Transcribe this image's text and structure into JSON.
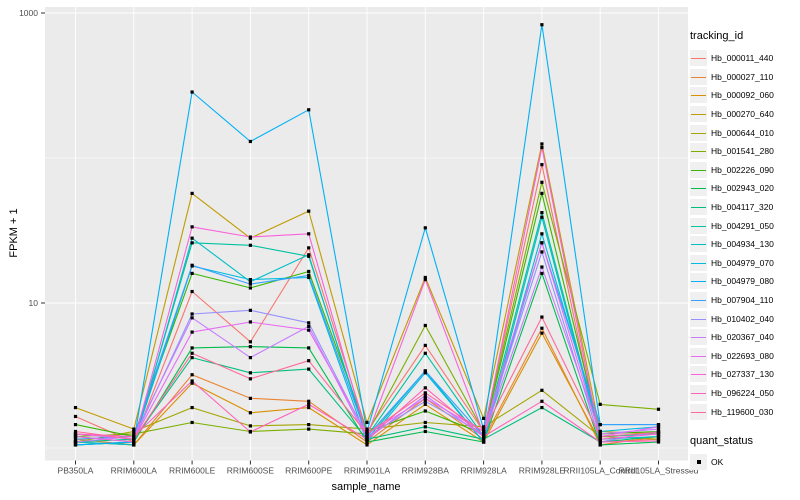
{
  "figure": {
    "y_axis": {
      "label": "FPKM + 1",
      "tick_labels": [
        "1000",
        "10"
      ],
      "tick_values": [
        1000,
        10
      ]
    },
    "x_axis": {
      "label": "sample_name"
    },
    "legend": {
      "tracking_title": "tracking_id",
      "quant_title": "quant_status",
      "quant_value": "OK"
    }
  },
  "colors": {
    "panel_bg": "#EBEBEB",
    "grid_major": "#FFFFFF",
    "grid_minor": "#FFFFFF",
    "axis_text": "#4D4D4D",
    "tick_mark": "#333333",
    "point": "#000000",
    "legend_key_bg": "#F0F0F0"
  },
  "chart_data": {
    "type": "line",
    "title": "",
    "xlabel": "sample_name",
    "ylabel": "FPKM + 1",
    "y_scale": "log10",
    "ylim": [
      1,
      1000
    ],
    "y_major_ticks": [
      10,
      1000
    ],
    "y_minor_gridlines": [
      1,
      100
    ],
    "grid": true,
    "legend_position": "right",
    "point_shape": "filled-black-square",
    "quant_status": "OK",
    "categories": [
      "PB350LA",
      "RRIM600LA",
      "RRIM600LE",
      "RRIM600SE",
      "RRIM600PE",
      "RRIM901LA",
      "RRIM928BA",
      "RRIM928LA",
      "RRIM928LE",
      "RRII105LA_Control",
      "RRII105LA_Stressed"
    ],
    "series": [
      {
        "name": "Hb_000011_440",
        "color": "#F8766D",
        "values": [
          1.65,
          1.1,
          12.0,
          5.4,
          24.0,
          1.3,
          5.1,
          1.3,
          90,
          1.1,
          1.15
        ]
      },
      {
        "name": "Hb_000027_110",
        "color": "#EA8331",
        "values": [
          1.15,
          1.05,
          3.2,
          2.2,
          2.1,
          1.1,
          2.2,
          1.15,
          6.7,
          1.05,
          1.2
        ]
      },
      {
        "name": "Hb_000092_060",
        "color": "#D89000",
        "values": [
          1.1,
          1.05,
          2.8,
          1.75,
          1.9,
          1.05,
          2.0,
          1.1,
          6.2,
          1.1,
          1.3
        ]
      },
      {
        "name": "Hb_000270_640",
        "color": "#C09B00",
        "values": [
          1.9,
          1.35,
          57,
          28,
          43,
          1.5,
          15.0,
          1.6,
          125,
          1.3,
          1.25
        ]
      },
      {
        "name": "Hb_000644_010",
        "color": "#A3A500",
        "values": [
          1.1,
          1.3,
          1.9,
          1.42,
          1.45,
          1.35,
          1.5,
          1.4,
          2.5,
          1.2,
          1.15
        ]
      },
      {
        "name": "Hb_001541_280",
        "color": "#7CAE00",
        "values": [
          1.2,
          1.25,
          1.5,
          1.3,
          1.35,
          1.25,
          7.0,
          1.3,
          68,
          2.0,
          1.85
        ]
      },
      {
        "name": "Hb_002226_090",
        "color": "#39B600",
        "values": [
          1.45,
          1.2,
          16.0,
          12.7,
          16.5,
          1.3,
          1.8,
          1.25,
          57,
          1.25,
          1.3
        ]
      },
      {
        "name": "Hb_002943_020",
        "color": "#00BB4E",
        "values": [
          1.05,
          1.1,
          4.9,
          5.0,
          4.9,
          1.1,
          1.3,
          1.1,
          16.0,
          1.05,
          1.1
        ]
      },
      {
        "name": "Hb_004117_320",
        "color": "#00BF7D",
        "values": [
          1.1,
          1.15,
          4.2,
          3.3,
          3.5,
          1.15,
          1.4,
          1.15,
          1.9,
          1.1,
          1.2
        ]
      },
      {
        "name": "Hb_004291_050",
        "color": "#00C1A3",
        "values": [
          1.2,
          1.1,
          26,
          25,
          21,
          1.2,
          4.5,
          1.2,
          42,
          1.2,
          1.25
        ]
      },
      {
        "name": "Hb_004934_130",
        "color": "#00BFC4",
        "values": [
          1.1,
          1.05,
          28,
          14.0,
          21.5,
          1.15,
          3.4,
          1.1,
          39,
          1.15,
          1.2
        ]
      },
      {
        "name": "Hb_004979_070",
        "color": "#00BAE0",
        "values": [
          1.05,
          1.1,
          18.0,
          14.5,
          15.0,
          1.1,
          3.3,
          1.1,
          30,
          1.3,
          1.4
        ]
      },
      {
        "name": "Hb_004979_080",
        "color": "#00B0F6",
        "values": [
          1.05,
          1.1,
          285,
          130,
          215,
          1.3,
          33,
          1.35,
          830,
          1.45,
          1.45
        ]
      },
      {
        "name": "Hb_007904_110",
        "color": "#35A2FF",
        "values": [
          1.15,
          1.2,
          18.2,
          13.5,
          15.5,
          1.2,
          3.4,
          1.2,
          26,
          1.45,
          1.45
        ]
      },
      {
        "name": "Hb_010402_040",
        "color": "#9590FF",
        "values": [
          1.25,
          1.15,
          8.4,
          8.9,
          7.3,
          1.2,
          2.1,
          1.25,
          22.5,
          1.1,
          1.3
        ]
      },
      {
        "name": "Hb_020367_040",
        "color": "#C77CFF",
        "values": [
          1.1,
          1.2,
          7.9,
          4.2,
          6.9,
          1.15,
          2.3,
          1.2,
          17.7,
          1.25,
          1.35
        ]
      },
      {
        "name": "Hb_022693_080",
        "color": "#E76BF3",
        "values": [
          1.25,
          1.15,
          6.3,
          7.4,
          6.5,
          1.25,
          2.2,
          1.3,
          26,
          1.2,
          1.4
        ]
      },
      {
        "name": "Hb_027337_130",
        "color": "#FA62DB",
        "values": [
          1.2,
          1.1,
          33.5,
          28.5,
          30.0,
          1.2,
          14.5,
          1.25,
          118,
          1.15,
          1.25
        ]
      },
      {
        "name": "Hb_096224_050",
        "color": "#FF62BC",
        "values": [
          1.25,
          1.2,
          2.9,
          1.29,
          2.0,
          1.15,
          2.6,
          1.2,
          2.1,
          1.1,
          1.12
        ]
      },
      {
        "name": "Hb_119600_030",
        "color": "#FF6A98",
        "values": [
          1.3,
          1.15,
          4.5,
          3.0,
          4.0,
          1.25,
          2.4,
          1.3,
          8.0,
          1.2,
          1.28
        ]
      }
    ]
  }
}
